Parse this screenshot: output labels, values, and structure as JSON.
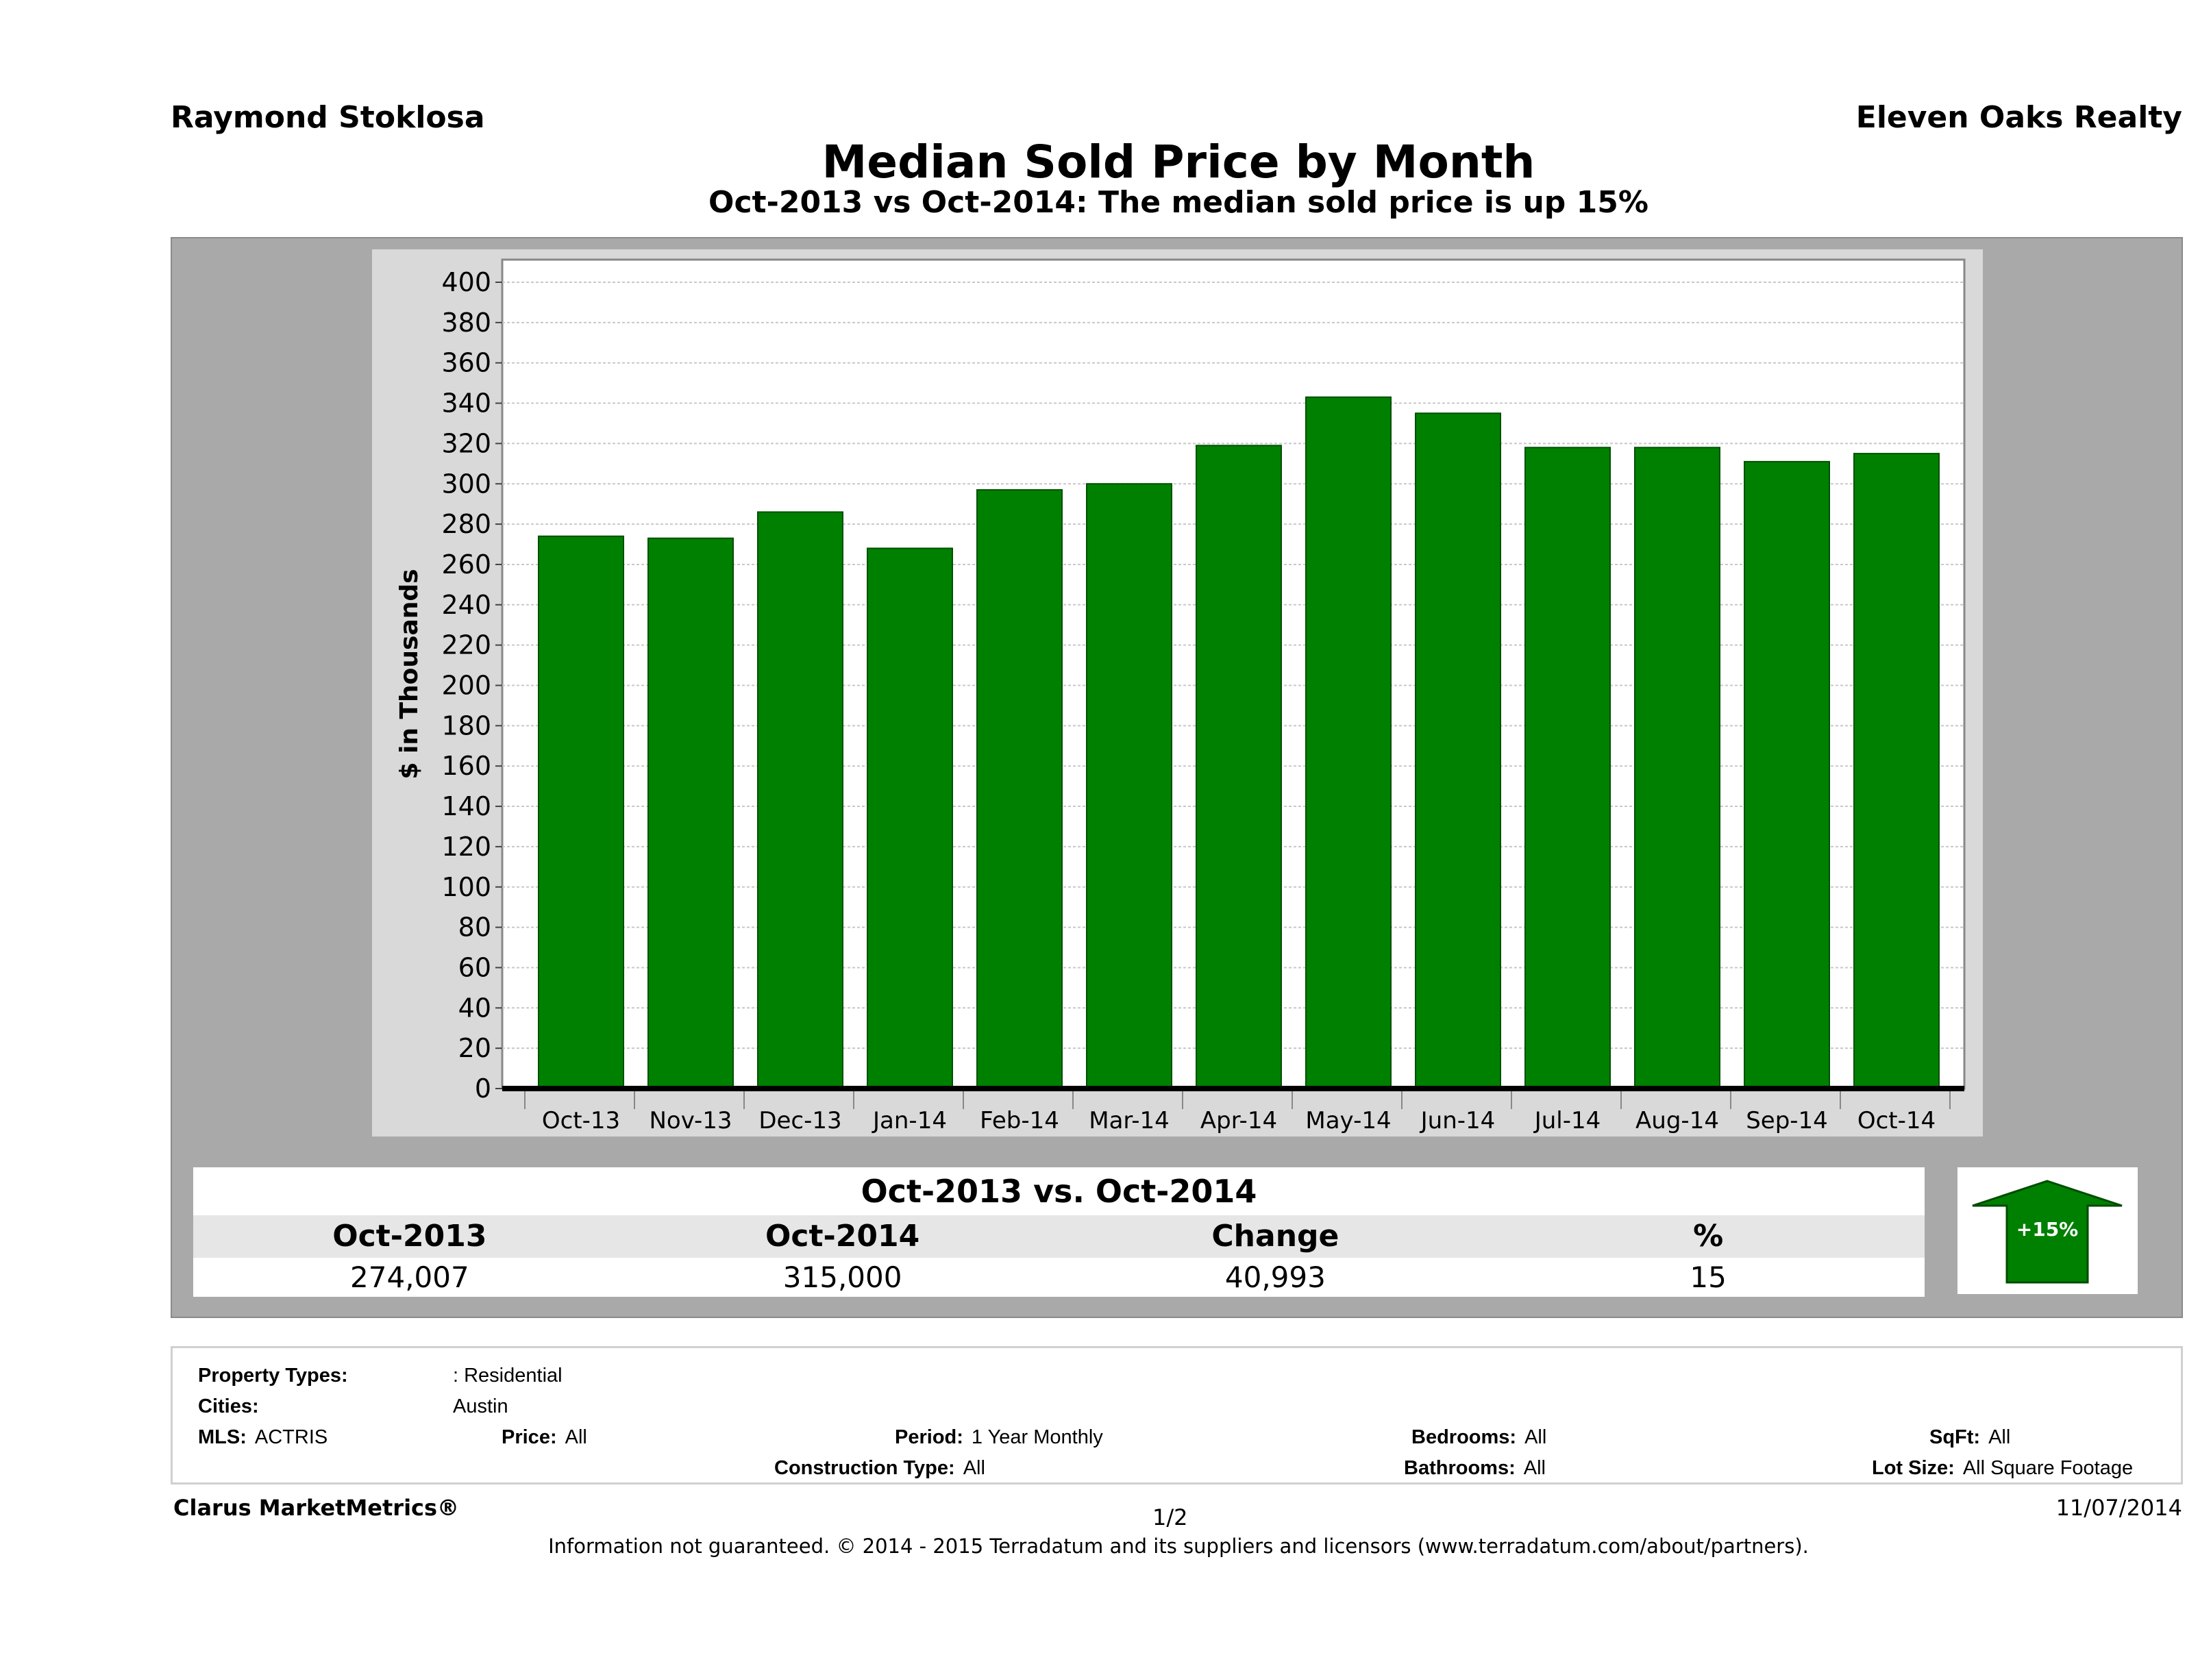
{
  "header": {
    "agent": "Raymond Stoklosa",
    "brokerage": "Eleven Oaks Realty"
  },
  "chart_data": {
    "type": "bar",
    "title": "Median Sold Price by Month",
    "subtitle": "Oct-2013 vs Oct-2014: The median sold price is up 15%",
    "ylabel": "$ in Thousands",
    "xlabel": "",
    "ylim": [
      0,
      400
    ],
    "yticks": [
      0,
      20,
      40,
      60,
      80,
      100,
      120,
      140,
      160,
      180,
      200,
      220,
      240,
      260,
      280,
      300,
      320,
      340,
      360,
      380,
      400
    ],
    "grid": true,
    "bar_color": "#008000",
    "categories": [
      "Oct-13",
      "Nov-13",
      "Dec-13",
      "Jan-14",
      "Feb-14",
      "Mar-14",
      "Apr-14",
      "May-14",
      "Jun-14",
      "Jul-14",
      "Aug-14",
      "Sep-14",
      "Oct-14"
    ],
    "values": [
      274,
      273,
      286,
      268,
      297,
      300,
      319,
      343,
      335,
      318,
      318,
      311,
      315
    ]
  },
  "summary": {
    "title": "Oct-2013 vs. Oct-2014",
    "headers": [
      "Oct-2013",
      "Oct-2014",
      "Change",
      "%"
    ],
    "values": [
      "274,007",
      "315,000",
      "40,993",
      "15"
    ],
    "badge": "+15%",
    "direction": "up",
    "arrow_color": "#008000"
  },
  "criteria": {
    "property_types_label": "Property Types:",
    "property_types": ": Residential",
    "cities_label": "Cities:",
    "cities": "Austin",
    "mls_label": "MLS:",
    "mls": "ACTRIS",
    "price_label": "Price:",
    "price": "All",
    "period_label": "Period:",
    "period": "1 Year Monthly",
    "bedrooms_label": "Bedrooms:",
    "bedrooms": "All",
    "sqft_label": "SqFt:",
    "sqft": "All",
    "construction_label": "Construction Type:",
    "construction": "All",
    "bathrooms_label": "Bathrooms:",
    "bathrooms": "All",
    "lot_label": "Lot Size:",
    "lot": "All Square Footage"
  },
  "footer": {
    "brand": "Clarus MarketMetrics®",
    "page": "1/2",
    "date": "11/07/2014",
    "note": "Information not guaranteed. © 2014 - 2015 Terradatum and its suppliers and licensors (www.terradatum.com/about/partners)."
  }
}
